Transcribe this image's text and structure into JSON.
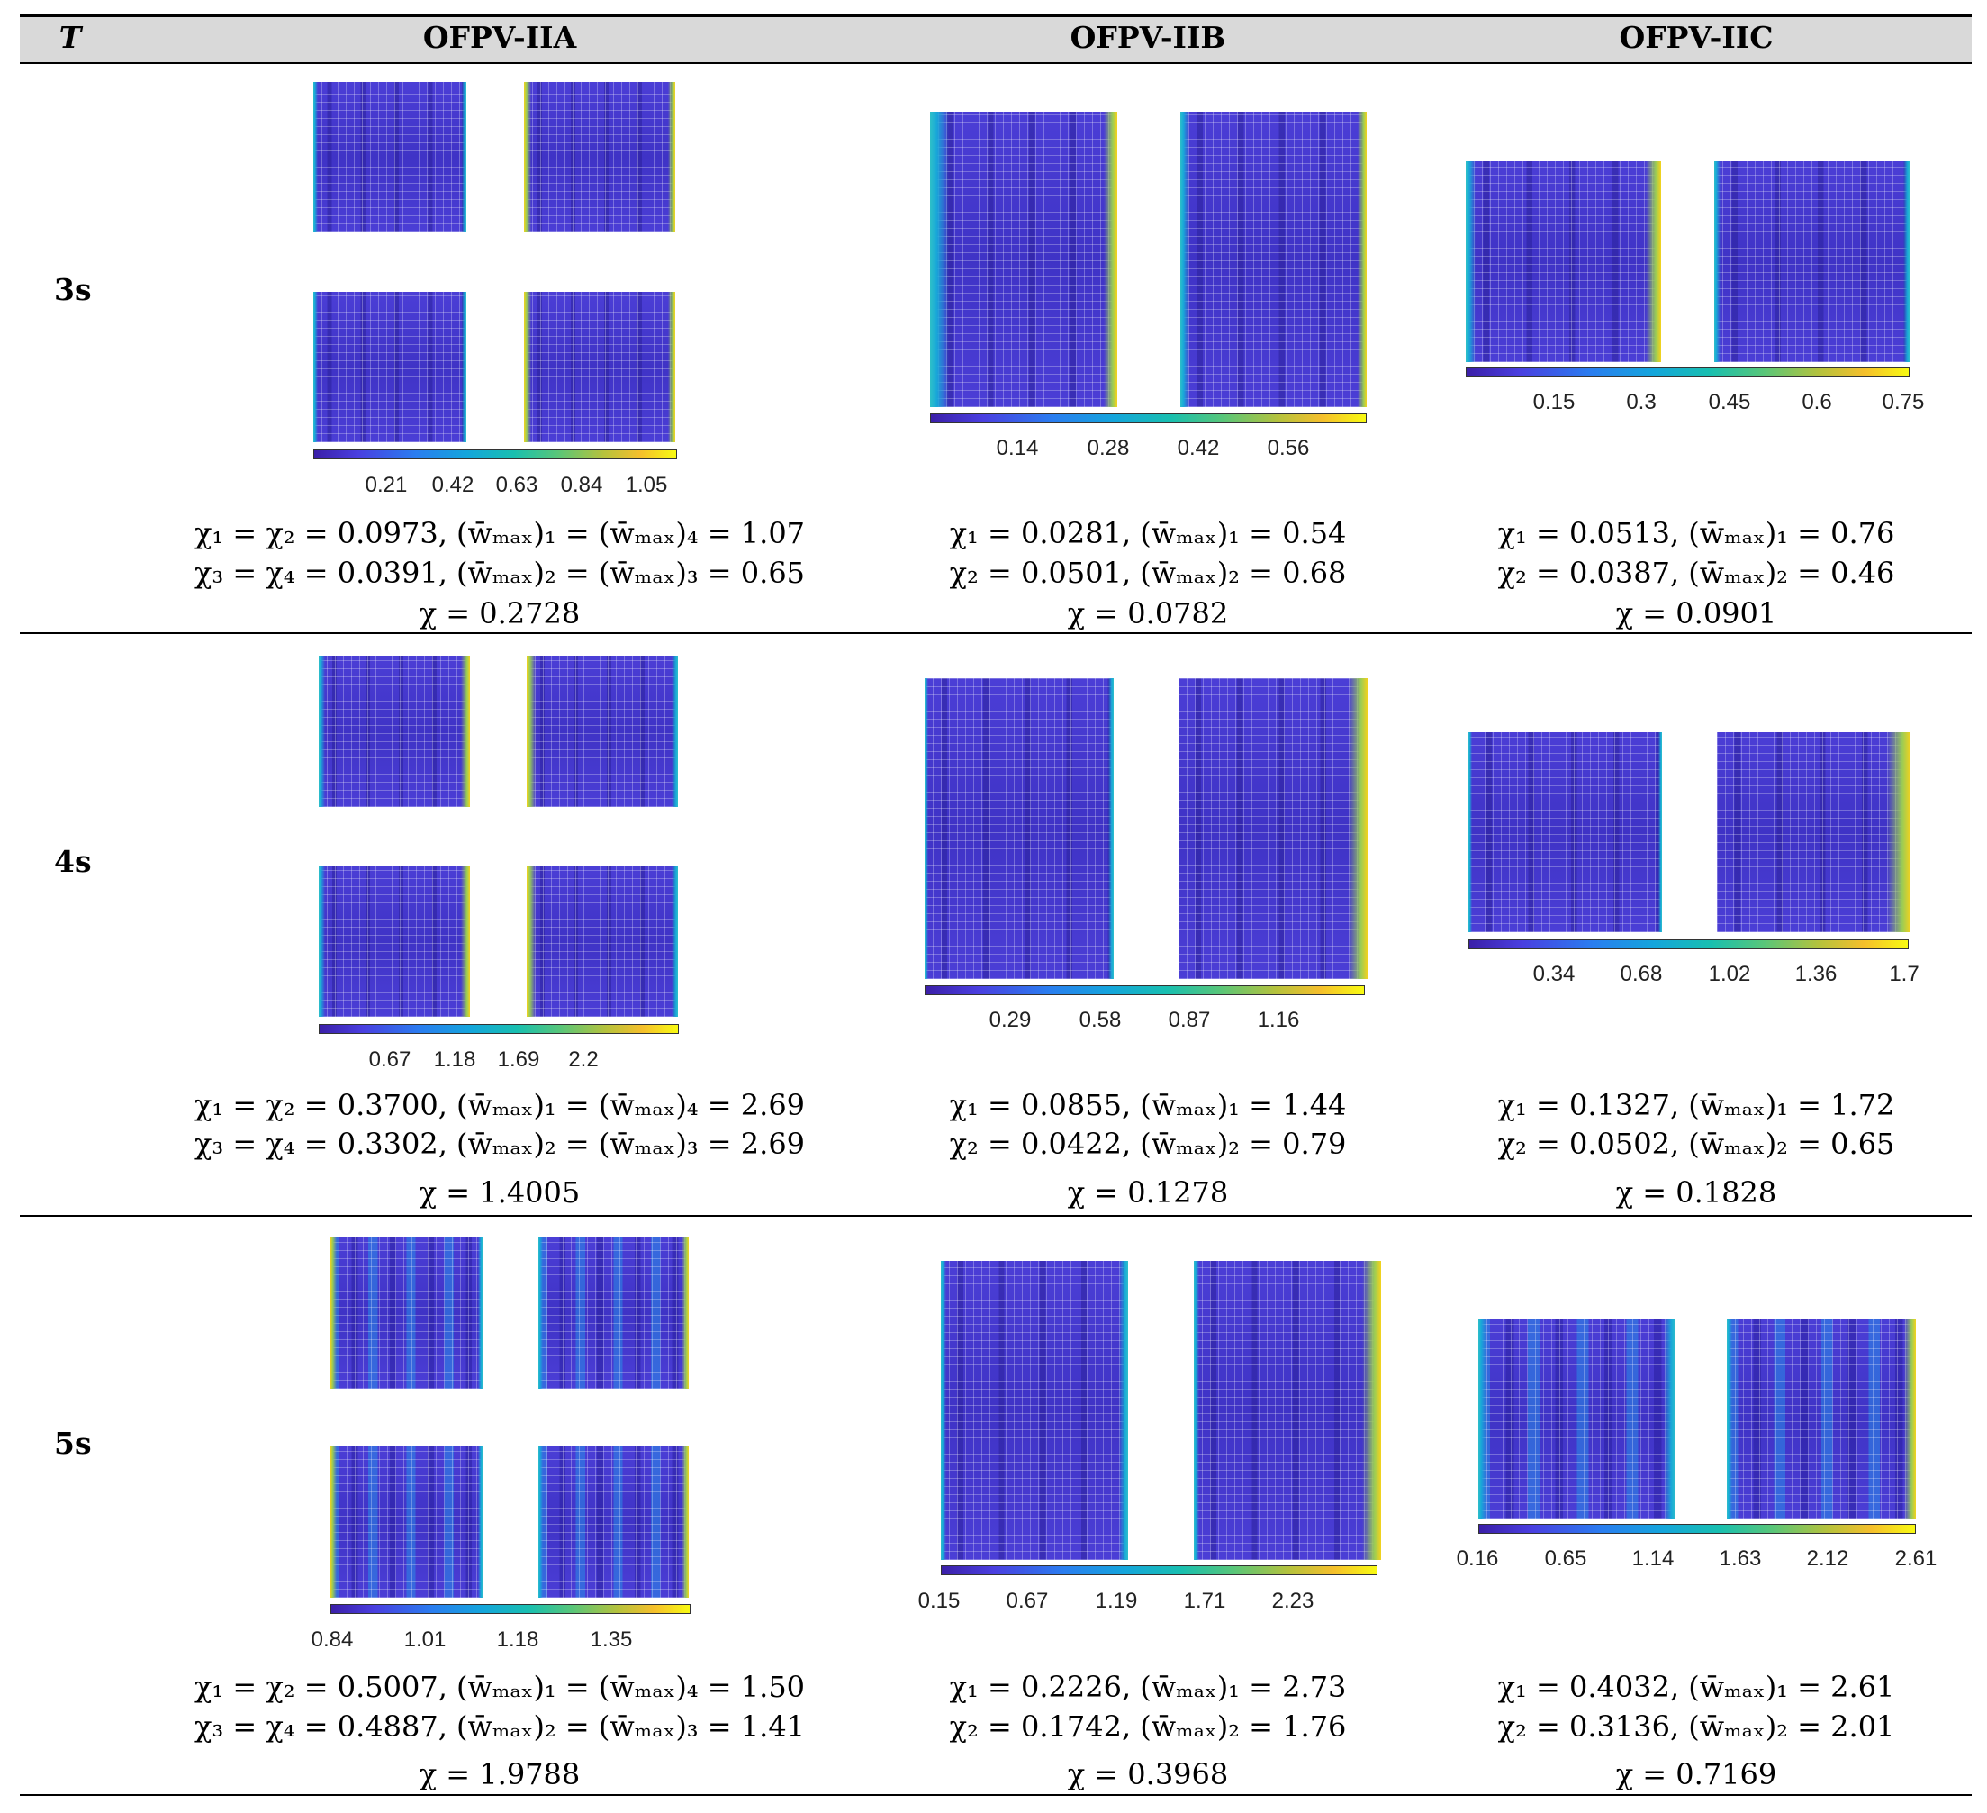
{
  "table": {
    "header": {
      "col_t": "T",
      "col_a": "OFPV-IIA",
      "col_b": "OFPV-IIB",
      "col_c": "OFPV-IIC"
    },
    "rows": [
      {
        "period": "3s",
        "a": {
          "colorbar_ticks": [
            "0.21",
            "0.42",
            "0.63",
            "0.84",
            "1.05"
          ],
          "eq1": "χ₁ = χ₂ = 0.0973, (w̄ₘₐₓ)₁ = (w̄ₘₐₓ)₄ = 1.07",
          "eq2": "χ₃ = χ₄ = 0.0391, (w̄ₘₐₓ)₂ = (w̄ₘₐₓ)₃ = 0.65",
          "eq3": "χ = 0.2728"
        },
        "b": {
          "colorbar_ticks": [
            "0.14",
            "0.28",
            "0.42",
            "0.56"
          ],
          "eq1": "χ₁ = 0.0281, (w̄ₘₐₓ)₁ = 0.54",
          "eq2": "χ₂ = 0.0501, (w̄ₘₐₓ)₂ = 0.68",
          "eq3": "χ = 0.0782"
        },
        "c": {
          "colorbar_ticks": [
            "0.15",
            "0.3",
            "0.45",
            "0.6",
            "0.75"
          ],
          "eq1": "χ₁ = 0.0513, (w̄ₘₐₓ)₁ = 0.76",
          "eq2": "χ₂ = 0.0387, (w̄ₘₐₓ)₂ = 0.46",
          "eq3": "χ = 0.0901"
        }
      },
      {
        "period": "4s",
        "a": {
          "colorbar_ticks": [
            "0.67",
            "1.18",
            "1.69",
            "2.2"
          ],
          "eq1": "χ₁ = χ₂ = 0.3700, (w̄ₘₐₓ)₁ = (w̄ₘₐₓ)₄ = 2.69",
          "eq2": "χ₃ = χ₄ = 0.3302, (w̄ₘₐₓ)₂ = (w̄ₘₐₓ)₃ = 2.69",
          "eq3": "χ = 1.4005"
        },
        "b": {
          "colorbar_ticks": [
            "0.29",
            "0.58",
            "0.87",
            "1.16"
          ],
          "eq1": "χ₁ = 0.0855, (w̄ₘₐₓ)₁ = 1.44",
          "eq2": "χ₂ = 0.0422, (w̄ₘₐₓ)₂ = 0.79",
          "eq3": "χ = 0.1278"
        },
        "c": {
          "colorbar_ticks": [
            "0.34",
            "0.68",
            "1.02",
            "1.36",
            "1.7"
          ],
          "eq1": "χ₁ = 0.1327, (w̄ₘₐₓ)₁ = 1.72",
          "eq2": "χ₂ = 0.0502, (w̄ₘₐₓ)₂ = 0.65",
          "eq3": "χ = 0.1828"
        }
      },
      {
        "period": "5s",
        "a": {
          "colorbar_ticks": [
            "0.84",
            "1.01",
            "1.18",
            "1.35"
          ],
          "eq1": "χ₁ = χ₂ = 0.5007, (w̄ₘₐₓ)₁ = (w̄ₘₐₓ)₄ = 1.50",
          "eq2": "χ₃ = χ₄ = 0.4887, (w̄ₘₐₓ)₂ = (w̄ₘₐₓ)₃ = 1.41",
          "eq3": "χ = 1.9788"
        },
        "b": {
          "colorbar_ticks": [
            "0.15",
            "0.67",
            "1.19",
            "1.71",
            "2.23"
          ],
          "eq1": "χ₁ = 0.2226, (w̄ₘₐₓ)₁ = 2.73",
          "eq2": "χ₂ = 0.1742, (w̄ₘₐₓ)₂ = 1.76",
          "eq3": "χ = 0.3968"
        },
        "c": {
          "colorbar_ticks": [
            "0.16",
            "0.65",
            "1.14",
            "1.63",
            "2.12",
            "2.61"
          ],
          "eq1": "χ₁ = 0.4032, (w̄ₘₐₓ)₁ = 2.61",
          "eq2": "χ₂ = 0.3136, (w̄ₘₐₓ)₂ = 2.01",
          "eq3": "χ = 0.7169"
        }
      }
    ]
  }
}
